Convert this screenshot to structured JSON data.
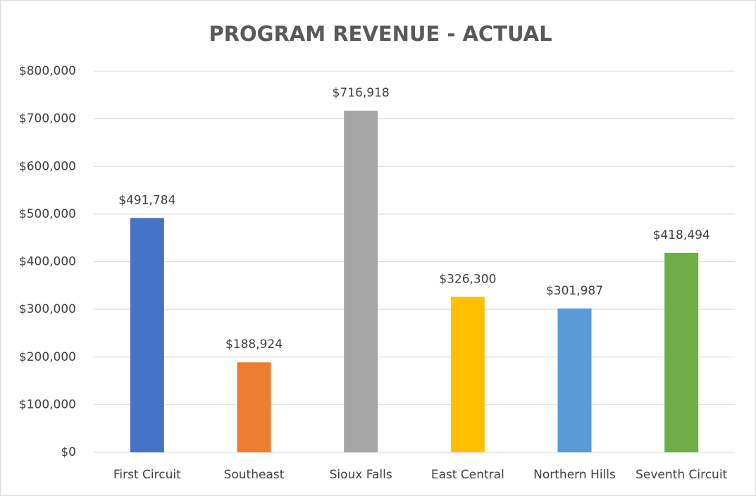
{
  "chart_data": {
    "type": "bar",
    "title": "PROGRAM REVENUE - ACTUAL",
    "categories": [
      "First Circuit",
      "Southeast",
      "Sioux Falls",
      "East Central",
      "Northern Hills",
      "Seventh Circuit"
    ],
    "values": [
      491784,
      188924,
      716918,
      326300,
      301987,
      418494
    ],
    "value_labels": [
      "$491,784",
      "$188,924",
      "$716,918",
      "$326,300",
      "$301,987",
      "$418,494"
    ],
    "colors": [
      "#4472c4",
      "#ed7d31",
      "#a5a5a5",
      "#ffc000",
      "#5b9bd5",
      "#70ad47"
    ],
    "ylim": [
      0,
      800000
    ],
    "yticks": [
      {
        "value": 0,
        "label": "$0"
      },
      {
        "value": 100000,
        "label": "$100,000"
      },
      {
        "value": 200000,
        "label": "$200,000"
      },
      {
        "value": 300000,
        "label": "$300,000"
      },
      {
        "value": 400000,
        "label": "$400,000"
      },
      {
        "value": 500000,
        "label": "$500,000"
      },
      {
        "value": 600000,
        "label": "$600,000"
      },
      {
        "value": 700000,
        "label": "$700,000"
      },
      {
        "value": 800000,
        "label": "$800,000"
      }
    ],
    "grid": true
  }
}
